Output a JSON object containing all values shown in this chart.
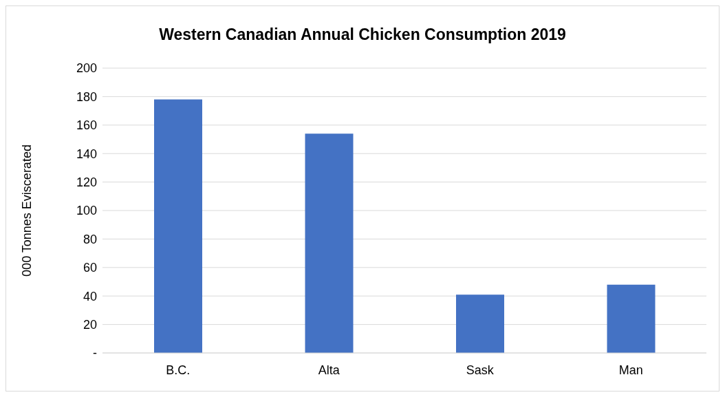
{
  "chart_data": {
    "type": "bar",
    "title": "Western Canadian Annual Chicken Consumption 2019",
    "ylabel": "000 Tonnes Eviscerated",
    "categories": [
      "B.C.",
      "Alta",
      "Sask",
      "Man"
    ],
    "values": [
      178,
      154,
      41,
      48
    ],
    "color": "#4472c4",
    "ylim": [
      0,
      200
    ],
    "yticks": [
      {
        "value": 0,
        "label": "-"
      },
      20,
      40,
      60,
      80,
      100,
      120,
      140,
      160,
      180,
      200
    ],
    "grid": "y",
    "legend": false
  }
}
